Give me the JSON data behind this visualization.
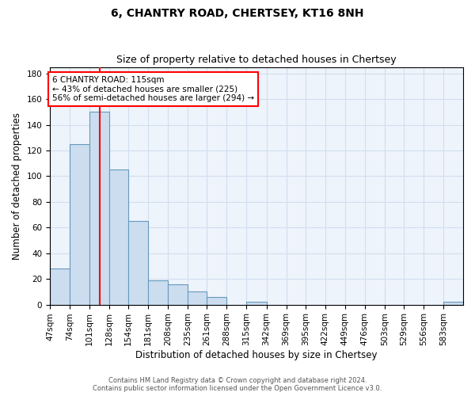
{
  "title": "6, CHANTRY ROAD, CHERTSEY, KT16 8NH",
  "subtitle": "Size of property relative to detached houses in Chertsey",
  "xlabel": "Distribution of detached houses by size in Chertsey",
  "ylabel": "Number of detached properties",
  "bin_edges": [
    47,
    74,
    101,
    128,
    154,
    181,
    208,
    235,
    261,
    288,
    315,
    342,
    369,
    395,
    422,
    449,
    476,
    503,
    529,
    556,
    583,
    610
  ],
  "bar_heights": [
    28,
    125,
    150,
    105,
    65,
    19,
    16,
    10,
    6,
    0,
    2,
    0,
    0,
    0,
    0,
    0,
    0,
    0,
    0,
    0,
    2
  ],
  "bar_facecolor": "#ccddf0",
  "bar_edgecolor": "#6699bb",
  "grid_color": "#d0dff0",
  "background_color": "#eef4fb",
  "red_line_x": 115,
  "annotation_text": "6 CHANTRY ROAD: 115sqm\n← 43% of detached houses are smaller (225)\n56% of semi-detached houses are larger (294) →",
  "annotation_box_color": "white",
  "annotation_box_edgecolor": "red",
  "ylim": [
    0,
    185
  ],
  "yticks": [
    0,
    20,
    40,
    60,
    80,
    100,
    120,
    140,
    160,
    180
  ],
  "footer_text": "Contains HM Land Registry data © Crown copyright and database right 2024.\nContains public sector information licensed under the Open Government Licence v3.0.",
  "title_fontsize": 10,
  "subtitle_fontsize": 9,
  "tick_fontsize": 7.5,
  "ylabel_fontsize": 8.5,
  "xlabel_fontsize": 8.5,
  "annot_fontsize": 7.5
}
